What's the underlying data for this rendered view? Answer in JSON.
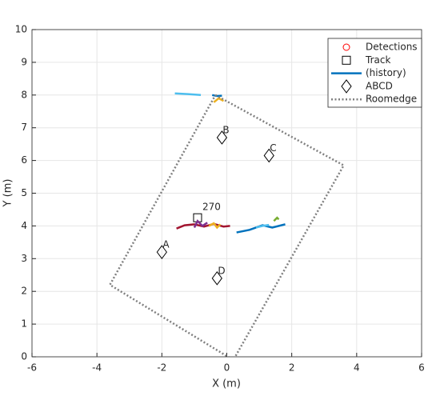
{
  "chart_data": {
    "type": "scatter",
    "xlabel": "X (m)",
    "ylabel": "Y (m)",
    "xlim": [
      -6,
      6
    ],
    "ylim": [
      0,
      10
    ],
    "xticks": [
      -6,
      -4,
      -2,
      0,
      2,
      4,
      6
    ],
    "yticks": [
      0,
      1,
      2,
      3,
      4,
      5,
      6,
      7,
      8,
      9,
      10
    ],
    "grid": true,
    "legend": "upper right",
    "series": [
      {
        "name": "Detections",
        "marker": "circle",
        "color": "#ff0000",
        "x": [],
        "y": []
      },
      {
        "name": "Track",
        "marker": "square",
        "color": "#000000",
        "x": [
          -0.9
        ],
        "y": [
          4.25
        ],
        "point_labels": [
          "270"
        ]
      },
      {
        "name": "(history)",
        "marker": "line",
        "color": "#0072bd",
        "lines": [
          {
            "color": "#4dbeee",
            "x": [
              -1.6,
              -1.2,
              -0.8
            ],
            "y": [
              8.05,
              8.03,
              8.0
            ]
          },
          {
            "color": "#0072bd",
            "x": [
              -0.45,
              -0.3,
              -0.15
            ],
            "y": [
              8.0,
              7.97,
              7.98
            ]
          },
          {
            "color": "#edb120",
            "x": [
              -0.4,
              -0.25,
              -0.1
            ],
            "y": [
              7.78,
              7.9,
              7.82
            ]
          },
          {
            "color": "#a2142f",
            "x": [
              -1.55,
              -1.3,
              -1.0,
              -0.7,
              -0.4,
              -0.1,
              0.1
            ],
            "y": [
              3.92,
              4.02,
              4.05,
              3.98,
              4.06,
              3.98,
              4.0
            ]
          },
          {
            "color": "#7e2f8e",
            "x": [
              -1.0,
              -0.9,
              -0.75,
              -0.6
            ],
            "y": [
              3.95,
              4.15,
              4.0,
              4.1
            ]
          },
          {
            "color": "#edb120",
            "x": [
              -0.55,
              -0.4,
              -0.3,
              -0.2
            ],
            "y": [
              4.0,
              4.08,
              3.95,
              4.05
            ]
          },
          {
            "color": "#0072bd",
            "x": [
              0.3,
              0.7,
              1.1,
              1.4,
              1.8
            ],
            "y": [
              3.8,
              3.88,
              4.02,
              3.95,
              4.05
            ]
          },
          {
            "color": "#4dbeee",
            "x": [
              0.9,
              1.1,
              1.3
            ],
            "y": [
              3.95,
              4.0,
              4.03
            ]
          },
          {
            "color": "#77ac30",
            "x": [
              1.45,
              1.55,
              1.6
            ],
            "y": [
              4.15,
              4.25,
              4.2
            ]
          }
        ]
      },
      {
        "name": "ABCD",
        "marker": "diamond",
        "color": "#000000",
        "x": [
          -2.0,
          -0.15,
          1.3,
          -0.3
        ],
        "y": [
          3.2,
          6.7,
          6.15,
          2.4
        ],
        "point_labels": [
          "A",
          "B",
          "C",
          "D"
        ]
      },
      {
        "name": "Roomedge",
        "marker": "dotted",
        "color": "#808080",
        "x": [
          -0.35,
          3.6,
          0.2,
          -3.6,
          -0.35
        ],
        "y": [
          8.0,
          5.85,
          -0.1,
          2.2,
          8.0
        ]
      }
    ]
  }
}
